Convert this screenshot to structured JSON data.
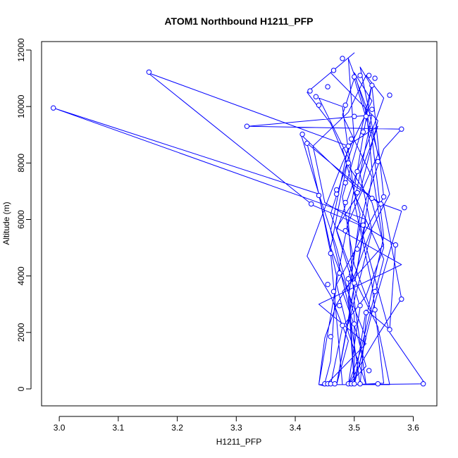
{
  "chart_data": {
    "type": "line",
    "title": "ATOM1 Northbound H1211_PFP",
    "xlabel": "H1211_PFP",
    "ylabel": "Altitude (m)",
    "xlim": [
      2.97,
      3.64
    ],
    "ylim": [
      -600,
      12300
    ],
    "xticks": [
      "3.0",
      "3.1",
      "3.2",
      "3.3",
      "3.4",
      "3.5",
      "3.6"
    ],
    "yticks": [
      "0",
      "2000",
      "4000",
      "6000",
      "8000",
      "10000",
      "12000"
    ],
    "grid": false,
    "legend": "none",
    "colors": {
      "series": "#0000ff",
      "axis": "#000000",
      "background": "#ffffff"
    },
    "series": [
      {
        "points": [
          [
            3.49,
            150
          ],
          [
            3.52,
            800
          ],
          [
            3.5,
            2250
          ],
          [
            3.48,
            3450
          ],
          [
            3.55,
            5100
          ],
          [
            3.53,
            6600
          ],
          [
            3.49,
            7900
          ],
          [
            3.46,
            9400
          ],
          [
            3.42,
            10500
          ],
          [
            3.5,
            11900
          ],
          [
            3.46,
            11200
          ],
          [
            3.54,
            9500
          ],
          [
            3.51,
            7000
          ],
          [
            3.47,
            5700
          ],
          [
            3.58,
            4400
          ],
          [
            3.44,
            3000
          ],
          [
            3.52,
            1600
          ],
          [
            3.45,
            100
          ],
          [
            3.44,
            150
          ],
          [
            3.45,
            1800
          ],
          [
            3.47,
            3000
          ],
          [
            3.5,
            4000
          ],
          [
            3.53,
            5700
          ],
          [
            3.56,
            6900
          ],
          [
            3.53,
            9100
          ],
          [
            3.51,
            10500
          ],
          [
            3.5,
            11200
          ],
          [
            3.53,
            10200
          ],
          [
            3.48,
            8000
          ],
          [
            3.45,
            6400
          ],
          [
            3.42,
            4700
          ],
          [
            3.46,
            3300
          ],
          [
            3.49,
            1700
          ],
          [
            3.47,
            150
          ],
          [
            3.46,
            150
          ],
          [
            3.48,
            2200
          ],
          [
            3.52,
            3300
          ],
          [
            3.55,
            5000
          ],
          [
            3.53,
            7800
          ],
          [
            3.52,
            10000
          ],
          [
            3.49,
            11700
          ],
          [
            3.5,
            8800
          ],
          [
            3.46,
            6200
          ],
          [
            3.5,
            3900
          ],
          [
            3.54,
            2200
          ],
          [
            3.56,
            150
          ],
          [
            3.49,
            150
          ],
          [
            3.51,
            2900
          ],
          [
            3.47,
            5600
          ],
          [
            3.5,
            7400
          ],
          [
            3.55,
            10300
          ],
          [
            3.52,
            11100
          ],
          [
            3.49,
            9800
          ],
          [
            3.43,
            8600
          ],
          [
            3.45,
            6600
          ],
          [
            3.57,
            5100
          ],
          [
            3.56,
            2100
          ],
          [
            3.52,
            2800
          ],
          [
            3.5,
            150
          ],
          [
            3.48,
            150
          ],
          [
            3.46,
            4800
          ],
          [
            3.44,
            6900
          ],
          [
            3.41,
            9000
          ],
          [
            3.45,
            8200
          ],
          [
            3.5,
            7200
          ],
          [
            3.55,
            6500
          ],
          [
            3.58,
            3200
          ],
          [
            3.54,
            1900
          ],
          [
            3.49,
            150
          ],
          [
            3.5,
            150
          ],
          [
            3.49,
            3900
          ],
          [
            3.52,
            6700
          ],
          [
            3.55,
            8500
          ],
          [
            3.58,
            9200
          ],
          [
            3.32,
            9300
          ],
          [
            3.53,
            9700
          ],
          [
            3.5,
            6600
          ],
          [
            3.53,
            3700
          ],
          [
            3.55,
            200
          ],
          [
            3.5,
            150
          ],
          [
            3.53,
            2700
          ],
          [
            3.58,
            6300
          ],
          [
            3.54,
            6600
          ],
          [
            3.42,
            8700
          ],
          [
            3.44,
            6900
          ],
          [
            3.47,
            4000
          ],
          [
            3.46,
            1000
          ],
          [
            3.45,
            200
          ],
          [
            3.47,
            150
          ],
          [
            3.49,
            2400
          ],
          [
            3.51,
            4900
          ],
          [
            3.53,
            7500
          ],
          [
            3.48,
            9700
          ],
          [
            3.5,
            11000
          ],
          [
            3.53,
            8900
          ],
          [
            3.55,
            5400
          ],
          [
            3.52,
            2500
          ],
          [
            3.51,
            150
          ],
          [
            3.52,
            150
          ],
          [
            3.49,
            2000
          ],
          [
            3.47,
            3700
          ],
          [
            3.55,
            6800
          ],
          [
            3.53,
            10700
          ],
          [
            3.51,
            11400
          ],
          [
            3.54,
            8300
          ],
          [
            3.49,
            5900
          ],
          [
            3.5,
            3100
          ],
          [
            3.52,
            150
          ],
          [
            3.5,
            150
          ],
          [
            3.52,
            1800
          ],
          [
            3.46,
            5000
          ],
          [
            3.49,
            8200
          ],
          [
            3.44,
            10300
          ],
          [
            3.48,
            10000
          ],
          [
            3.5,
            6900
          ],
          [
            3.55,
            4600
          ],
          [
            3.51,
            1300
          ],
          [
            3.49,
            150
          ],
          [
            3.44,
            150
          ],
          [
            3.47,
            3800
          ],
          [
            3.5,
            7100
          ],
          [
            3.53,
            10800
          ],
          [
            3.51,
            9000
          ],
          [
            3.48,
            6800
          ],
          [
            3.5,
            4400
          ],
          [
            3.53,
            2700
          ],
          [
            3.5,
            150
          ],
          [
            3.62,
            180
          ],
          [
            3.56,
            2000
          ],
          [
            3.51,
            5800
          ],
          [
            3.43,
            6500
          ],
          [
            3.15,
            11200
          ],
          [
            3.49,
            8600
          ],
          [
            3.46,
            5600
          ],
          [
            3.49,
            3000
          ],
          [
            3.51,
            150
          ],
          [
            3.47,
            150
          ],
          [
            3.52,
            6000
          ],
          [
            2.99,
            9950
          ],
          [
            3.44,
            6900
          ],
          [
            3.47,
            5000
          ],
          [
            3.5,
            2600
          ],
          [
            3.5,
            150
          ],
          [
            3.49,
            3200
          ],
          [
            3.51,
            6200
          ],
          [
            3.48,
            8500
          ],
          [
            3.54,
            9300
          ],
          [
            3.51,
            7600
          ],
          [
            3.53,
            5600
          ],
          [
            3.49,
            2300
          ]
        ],
        "markers": [
          [
            3.45,
            180
          ],
          [
            3.455,
            180
          ],
          [
            3.46,
            180
          ],
          [
            3.467,
            180
          ],
          [
            3.49,
            180
          ],
          [
            3.495,
            180
          ],
          [
            3.5,
            180
          ],
          [
            3.51,
            180
          ],
          [
            3.54,
            180
          ],
          [
            3.617,
            180
          ],
          [
            3.525,
            650
          ],
          [
            3.46,
            1850
          ],
          [
            3.56,
            2100
          ],
          [
            3.48,
            2250
          ],
          [
            3.5,
            2300
          ],
          [
            3.535,
            2800
          ],
          [
            3.475,
            2950
          ],
          [
            3.51,
            2950
          ],
          [
            3.58,
            3180
          ],
          [
            3.465,
            3450
          ],
          [
            3.535,
            3450
          ],
          [
            3.5,
            3750
          ],
          [
            3.49,
            3900
          ],
          [
            3.46,
            4800
          ],
          [
            3.505,
            4950
          ],
          [
            3.57,
            5100
          ],
          [
            3.485,
            5600
          ],
          [
            3.515,
            5800
          ],
          [
            3.427,
            6550
          ],
          [
            3.545,
            6550
          ],
          [
            3.585,
            6420
          ],
          [
            3.485,
            6600
          ],
          [
            3.55,
            6800
          ],
          [
            3.47,
            6900
          ],
          [
            3.44,
            6850
          ],
          [
            3.53,
            6750
          ],
          [
            3.47,
            7050
          ],
          [
            3.505,
            6950
          ],
          [
            3.485,
            7300
          ],
          [
            3.49,
            8000
          ],
          [
            3.54,
            8050
          ],
          [
            3.42,
            8700
          ],
          [
            3.49,
            8600
          ],
          [
            3.495,
            8850
          ],
          [
            3.412,
            9020
          ],
          [
            3.318,
            9300
          ],
          [
            3.58,
            9200
          ],
          [
            3.515,
            9100
          ],
          [
            3.5,
            9650
          ],
          [
            3.52,
            9650
          ],
          [
            3.53,
            9900
          ],
          [
            3.44,
            10050
          ],
          [
            3.485,
            10050
          ],
          [
            3.425,
            10550
          ],
          [
            3.435,
            10350
          ],
          [
            3.455,
            10700
          ],
          [
            3.53,
            10750
          ],
          [
            3.56,
            10400
          ],
          [
            3.5,
            11050
          ],
          [
            3.51,
            11100
          ],
          [
            3.525,
            11100
          ],
          [
            3.535,
            11000
          ],
          [
            3.465,
            11280
          ],
          [
            3.48,
            11700
          ],
          [
            3.152,
            11220
          ],
          [
            2.99,
            9950
          ],
          [
            3.505,
            7700
          ],
          [
            3.475,
            4100
          ],
          [
            3.52,
            2700
          ],
          [
            3.455,
            3700
          ]
        ]
      }
    ]
  }
}
